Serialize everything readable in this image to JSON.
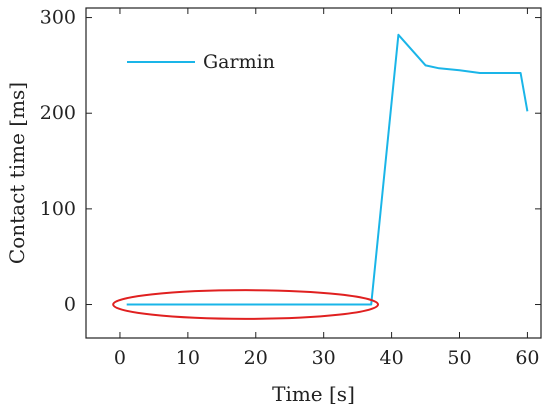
{
  "chart_data": {
    "type": "line",
    "title": "",
    "xlabel": "Time [s]",
    "ylabel": "Contact time [ms]",
    "xlim": [
      -5,
      62
    ],
    "ylim": [
      -35,
      310
    ],
    "xticks": [
      0,
      10,
      20,
      30,
      40,
      50,
      60
    ],
    "yticks": [
      0,
      100,
      200,
      300
    ],
    "grid": false,
    "legend_position": "top-left",
    "series": [
      {
        "name": "Garmin",
        "color": "#1ab5e8",
        "x": [
          1,
          5,
          10,
          15,
          20,
          25,
          30,
          35,
          37,
          41,
          45,
          47,
          50,
          53,
          56,
          59,
          60
        ],
        "y": [
          0,
          0,
          0,
          0,
          0,
          0,
          0,
          0,
          0,
          282,
          250,
          247,
          245,
          242,
          242,
          242,
          202
        ]
      }
    ],
    "annotations": [
      {
        "type": "ellipse",
        "color": "#e02020",
        "x_range": [
          -1,
          38
        ],
        "y_range": [
          -15,
          15
        ]
      }
    ]
  }
}
